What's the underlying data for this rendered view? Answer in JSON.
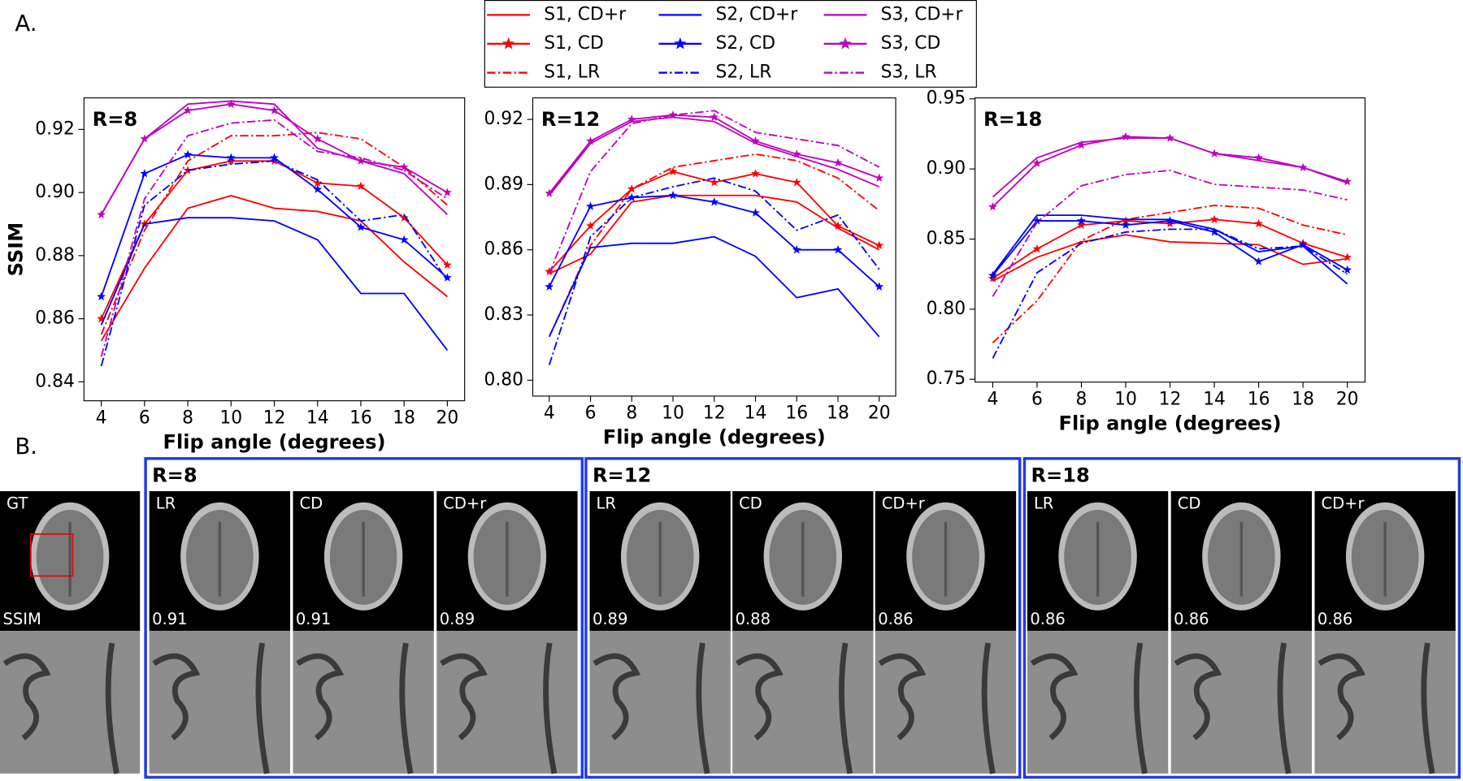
{
  "panel_a_label": "A.",
  "chart_data": [
    {
      "type": "line",
      "title": "R=8",
      "xlabel": "Flip angle (degrees)",
      "ylabel": "SSIM",
      "x": [
        4,
        6,
        8,
        10,
        12,
        14,
        16,
        18,
        20
      ],
      "xlim": [
        3.2,
        20.8
      ],
      "xticks": [
        4,
        6,
        8,
        10,
        12,
        14,
        16,
        18,
        20
      ],
      "ylim": [
        0.834,
        0.93
      ],
      "yticks": [
        0.84,
        0.86,
        0.88,
        {
          "value": 0.9,
          "label": "0.90"
        },
        0.92
      ],
      "series": [
        {
          "name": "S1, CD+r",
          "color": "#ff0000",
          "line_style": "solid",
          "values": [
            0.853,
            0.876,
            0.895,
            0.899,
            0.895,
            0.894,
            0.891,
            0.878,
            0.867
          ]
        },
        {
          "name": "S1, CD",
          "color": "#ff0000",
          "line_style": "solid",
          "marker": "star",
          "values": [
            0.86,
            0.89,
            0.907,
            0.91,
            0.91,
            0.903,
            0.902,
            0.892,
            0.877
          ]
        },
        {
          "name": "S1, LR",
          "color": "#ff0000",
          "line_style": "dashdot",
          "values": [
            0.855,
            0.888,
            0.91,
            0.918,
            0.918,
            0.919,
            0.917,
            0.908,
            0.896
          ]
        },
        {
          "name": "S2, CD+r",
          "color": "#0000ff",
          "line_style": "solid",
          "values": [
            0.858,
            0.89,
            0.892,
            0.892,
            0.891,
            0.885,
            0.868,
            0.868,
            0.85
          ]
        },
        {
          "name": "S2, CD",
          "color": "#0000ff",
          "line_style": "solid",
          "marker": "star",
          "values": [
            0.867,
            0.906,
            0.912,
            0.911,
            0.911,
            0.901,
            0.889,
            0.885,
            0.873
          ]
        },
        {
          "name": "S2, LR",
          "color": "#0000ff",
          "line_style": "dashdot",
          "values": [
            0.845,
            0.896,
            0.907,
            0.909,
            0.91,
            0.904,
            0.891,
            0.893,
            0.872
          ]
        },
        {
          "name": "S3, CD+r",
          "color": "#bf00bf",
          "line_style": "solid",
          "values": [
            0.893,
            0.917,
            0.928,
            0.929,
            0.928,
            0.914,
            0.91,
            0.906,
            0.893
          ]
        },
        {
          "name": "S3, CD",
          "color": "#bf00bf",
          "line_style": "solid",
          "marker": "star",
          "values": [
            0.893,
            0.917,
            0.926,
            0.928,
            0.926,
            0.917,
            0.91,
            0.908,
            0.9
          ]
        },
        {
          "name": "S3, LR",
          "color": "#bf00bf",
          "line_style": "dashdot",
          "values": [
            0.848,
            0.898,
            0.918,
            0.922,
            0.923,
            0.913,
            0.911,
            0.907,
            0.898
          ]
        }
      ]
    },
    {
      "type": "line",
      "title": "R=12",
      "xlabel": "Flip angle (degrees)",
      "x": [
        4,
        6,
        8,
        10,
        12,
        14,
        16,
        18,
        20
      ],
      "xlim": [
        3.2,
        20.8
      ],
      "xticks": [
        4,
        6,
        8,
        10,
        12,
        14,
        16,
        18,
        20
      ],
      "ylim": [
        0.7927,
        0.9299
      ],
      "yticks": [
        {
          "value": 0.8,
          "label": "0.80"
        },
        0.83,
        0.86,
        0.89,
        0.92
      ],
      "series": [
        {
          "name": "S1, CD+r",
          "color": "#ff0000",
          "line_style": "solid",
          "values": [
            0.849,
            0.858,
            0.882,
            0.885,
            0.885,
            0.885,
            0.882,
            0.87,
            0.86
          ]
        },
        {
          "name": "S1, CD",
          "color": "#ff0000",
          "line_style": "solid",
          "marker": "star",
          "values": [
            0.85,
            0.871,
            0.888,
            0.896,
            0.891,
            0.895,
            0.891,
            0.871,
            0.862
          ]
        },
        {
          "name": "S1, LR",
          "color": "#ff0000",
          "line_style": "dashdot",
          "values": [
            0.82,
            0.862,
            0.888,
            0.898,
            0.901,
            0.904,
            0.901,
            0.893,
            0.878
          ]
        },
        {
          "name": "S2, CD+r",
          "color": "#0000ff",
          "line_style": "solid",
          "values": [
            0.82,
            0.861,
            0.863,
            0.863,
            0.866,
            0.857,
            0.838,
            0.842,
            0.82
          ]
        },
        {
          "name": "S2, CD",
          "color": "#0000ff",
          "line_style": "solid",
          "marker": "star",
          "values": [
            0.843,
            0.88,
            0.884,
            0.885,
            0.882,
            0.877,
            0.86,
            0.86,
            0.843
          ]
        },
        {
          "name": "S2, LR",
          "color": "#0000ff",
          "line_style": "dashdot",
          "values": [
            0.807,
            0.866,
            0.884,
            0.889,
            0.893,
            0.887,
            0.869,
            0.876,
            0.851
          ]
        },
        {
          "name": "S3, CD+r",
          "color": "#bf00bf",
          "line_style": "solid",
          "values": [
            0.885,
            0.909,
            0.919,
            0.921,
            0.919,
            0.909,
            0.903,
            0.897,
            0.889
          ]
        },
        {
          "name": "S3, CD",
          "color": "#bf00bf",
          "line_style": "solid",
          "marker": "star",
          "values": [
            0.886,
            0.91,
            0.92,
            0.922,
            0.921,
            0.91,
            0.904,
            0.9,
            0.893
          ]
        },
        {
          "name": "S3, LR",
          "color": "#bf00bf",
          "line_style": "dashdot",
          "values": [
            0.849,
            0.896,
            0.918,
            0.922,
            0.924,
            0.914,
            0.911,
            0.908,
            0.898
          ]
        }
      ]
    },
    {
      "type": "line",
      "title": "R=18",
      "xlabel": "Flip angle (degrees)",
      "x": [
        4,
        6,
        8,
        10,
        12,
        14,
        16,
        18,
        20
      ],
      "xlim": [
        3.2,
        20.8
      ],
      "xticks": [
        4,
        6,
        8,
        10,
        12,
        14,
        16,
        18,
        20
      ],
      "ylim": [
        0.748,
        0.9507
      ],
      "yticks": [
        0.75,
        {
          "value": 0.8,
          "label": "0.80"
        },
        0.85,
        {
          "value": 0.9,
          "label": "0.90"
        },
        0.95
      ],
      "series": [
        {
          "name": "S1, CD+r",
          "color": "#ff0000",
          "line_style": "solid",
          "values": [
            0.82,
            0.837,
            0.848,
            0.853,
            0.848,
            0.847,
            0.846,
            0.832,
            0.836
          ]
        },
        {
          "name": "S1, CD",
          "color": "#ff0000",
          "line_style": "solid",
          "marker": "star",
          "values": [
            0.822,
            0.843,
            0.86,
            0.863,
            0.861,
            0.864,
            0.861,
            0.847,
            0.837
          ]
        },
        {
          "name": "S1, LR",
          "color": "#ff0000",
          "line_style": "dashdot",
          "values": [
            0.776,
            0.806,
            0.849,
            0.864,
            0.869,
            0.874,
            0.872,
            0.86,
            0.853
          ]
        },
        {
          "name": "S2, CD+r",
          "color": "#0000ff",
          "line_style": "solid",
          "values": [
            0.825,
            0.867,
            0.867,
            0.864,
            0.864,
            0.857,
            0.841,
            0.845,
            0.818
          ]
        },
        {
          "name": "S2, CD",
          "color": "#0000ff",
          "line_style": "solid",
          "marker": "star",
          "values": [
            0.824,
            0.863,
            0.863,
            0.86,
            0.863,
            0.855,
            0.834,
            0.846,
            0.828
          ]
        },
        {
          "name": "S2, LR",
          "color": "#0000ff",
          "line_style": "dashdot",
          "values": [
            0.765,
            0.826,
            0.847,
            0.855,
            0.857,
            0.857,
            0.843,
            0.845,
            0.825
          ]
        },
        {
          "name": "S3, CD+r",
          "color": "#bf00bf",
          "line_style": "solid",
          "values": [
            0.88,
            0.908,
            0.919,
            0.922,
            0.922,
            0.911,
            0.906,
            0.901,
            0.89
          ]
        },
        {
          "name": "S3, CD",
          "color": "#bf00bf",
          "line_style": "solid",
          "marker": "star",
          "values": [
            0.873,
            0.904,
            0.917,
            0.923,
            0.922,
            0.911,
            0.908,
            0.901,
            0.891
          ]
        },
        {
          "name": "S3, LR",
          "color": "#bf00bf",
          "line_style": "dashdot",
          "values": [
            0.809,
            0.862,
            0.888,
            0.896,
            0.899,
            0.889,
            0.887,
            0.885,
            0.878
          ]
        }
      ]
    }
  ],
  "panel_b": {
    "label": "B.",
    "gt": {
      "label": "GT",
      "ssim_label": "SSIM"
    },
    "groups": [
      {
        "title": "R=8",
        "images": [
          {
            "label": "LR",
            "ssim": 0.91
          },
          {
            "label": "CD",
            "ssim": 0.91
          },
          {
            "label": "CD+r",
            "ssim": 0.89
          }
        ]
      },
      {
        "title": "R=12",
        "images": [
          {
            "label": "LR",
            "ssim": 0.89
          },
          {
            "label": "CD",
            "ssim": 0.88
          },
          {
            "label": "CD+r",
            "ssim": 0.86
          }
        ]
      },
      {
        "title": "R=18",
        "images": [
          {
            "label": "LR",
            "ssim": 0.86
          },
          {
            "label": "CD",
            "ssim": 0.86
          },
          {
            "label": "CD+r",
            "ssim": 0.86
          }
        ]
      }
    ]
  }
}
